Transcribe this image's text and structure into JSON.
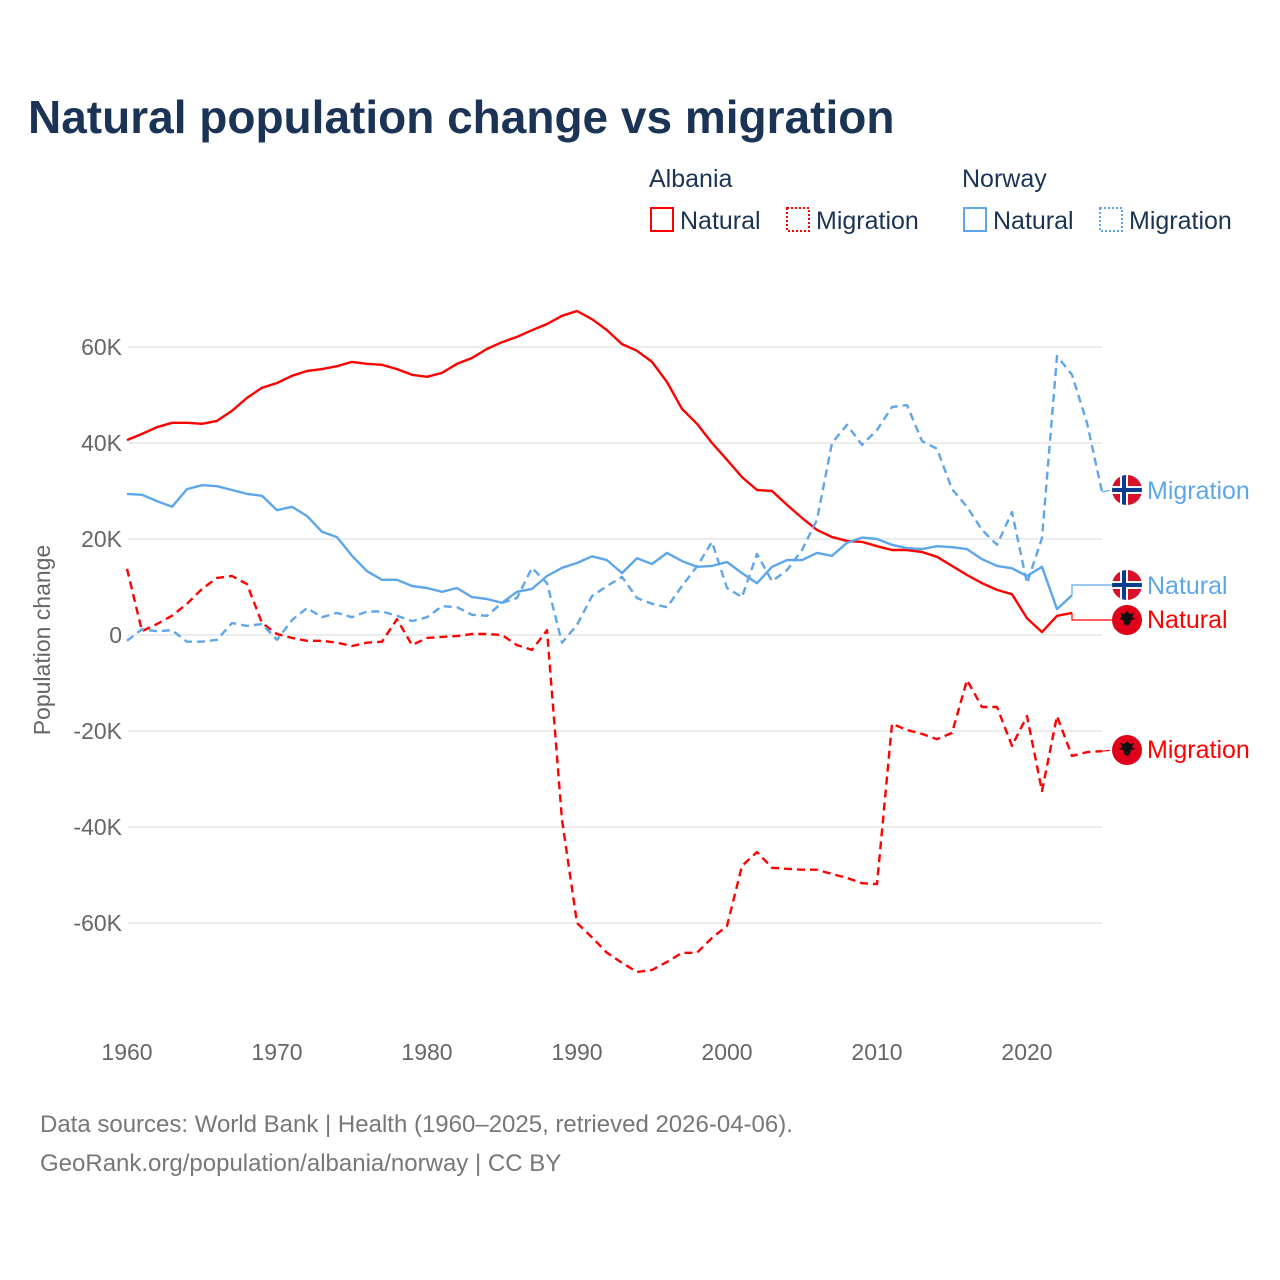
{
  "colors": {
    "albania": "#ff0000",
    "norway": "#5ea6ea",
    "title": "#1b3456"
  },
  "legend": {
    "groups": [
      {
        "country": "Albania",
        "natural": "Natural",
        "migration": "Migration"
      },
      {
        "country": "Norway",
        "natural": "Natural",
        "migration": "Migration"
      }
    ]
  },
  "footer": {
    "line1": "Data sources: World Bank | Health (1960–2025, retrieved 2026-04-06).",
    "line2": "GeoRank.org/population/albania/norway | CC BY"
  },
  "chart_data": {
    "type": "line",
    "title": "Natural population change vs migration",
    "xlabel": "",
    "ylabel": "Population change",
    "xlim": [
      1960,
      2025
    ],
    "ylim": [
      -80000,
      70000
    ],
    "x_ticks": [
      "1960",
      "1970",
      "1980",
      "1990",
      "2000",
      "2010",
      "2020"
    ],
    "y_ticks": [
      {
        "value": 60000,
        "label": "60K"
      },
      {
        "value": 40000,
        "label": "40K"
      },
      {
        "value": 20000,
        "label": "20K"
      },
      {
        "value": 0,
        "label": "0"
      },
      {
        "value": -20000,
        "label": "-20K"
      },
      {
        "value": -40000,
        "label": "-40K"
      },
      {
        "value": -60000,
        "label": "-60K"
      }
    ],
    "grid": true,
    "legend_position": "top-right",
    "series": [
      {
        "name": "Albania Natural",
        "country": "Albania",
        "end_label": "Natural",
        "color": "#ff0000",
        "dash": false,
        "start_year": 1960,
        "values": [
          40.6,
          41.9,
          43.3,
          44.2,
          44.2,
          44.0,
          44.6,
          46.7,
          49.4,
          51.5,
          52.5,
          54.0,
          55.0,
          55.4,
          56.0,
          56.9,
          56.5,
          56.3,
          55.4,
          54.2,
          53.8,
          54.6,
          56.5,
          57.7,
          59.6,
          61.0,
          62.1,
          63.5,
          64.8,
          66.5,
          67.5,
          65.8,
          63.5,
          60.6,
          59.2,
          56.9,
          52.7,
          47.1,
          44.0,
          40.0,
          36.5,
          32.9,
          30.2,
          30.0,
          27.1,
          24.4,
          21.9,
          20.4,
          19.6,
          19.4,
          18.5,
          17.7,
          17.7,
          17.3,
          16.3,
          14.4,
          12.5,
          10.8,
          9.4,
          8.5,
          3.5,
          0.6,
          4.0,
          4.6
        ]
      },
      {
        "name": "Albania Migration",
        "country": "Albania",
        "end_label": "Migration",
        "color": "#ff0000",
        "dash": true,
        "start_year": 1960,
        "values": [
          13.8,
          0.8,
          2.3,
          4.0,
          6.5,
          9.6,
          11.9,
          12.3,
          10.6,
          2.5,
          0.2,
          -0.6,
          -1.2,
          -1.2,
          -1.6,
          -2.3,
          -1.6,
          -1.4,
          3.3,
          -2.1,
          -0.6,
          -0.4,
          -0.2,
          0.2,
          0.2,
          0.0,
          -2.1,
          -3.1,
          1.0,
          -38.5,
          -60.0,
          -63.0,
          -66.2,
          -68.3,
          -70.2,
          -69.8,
          -68.1,
          -66.2,
          -66.2,
          -63.1,
          -60.6,
          -48.1,
          -45.2,
          -48.5,
          -48.7,
          -48.9,
          -48.9,
          -49.8,
          -50.6,
          -51.7,
          -51.9,
          -18.5,
          -19.8,
          -20.6,
          -21.7,
          -20.4,
          -9.4,
          -15.0,
          -15.0,
          -23.1,
          -16.9,
          -32.5,
          -16.9,
          -25.2,
          -24.4,
          -24.2
        ]
      },
      {
        "name": "Norway Natural",
        "country": "Norway",
        "end_label": "Natural",
        "color": "#5ea6ea",
        "dash": false,
        "start_year": 1960,
        "values": [
          29.4,
          29.2,
          27.9,
          26.7,
          30.4,
          31.2,
          31.0,
          30.2,
          29.4,
          29.0,
          26.0,
          26.7,
          24.8,
          21.5,
          20.4,
          16.5,
          13.3,
          11.5,
          11.5,
          10.2,
          9.8,
          9.0,
          9.8,
          7.9,
          7.5,
          6.7,
          9.0,
          9.6,
          12.3,
          14.0,
          15.0,
          16.4,
          15.6,
          12.9,
          16.0,
          14.8,
          17.1,
          15.4,
          14.2,
          14.4,
          15.2,
          12.9,
          10.8,
          14.2,
          15.6,
          15.6,
          17.1,
          16.5,
          19.2,
          20.3,
          20.0,
          18.8,
          18.1,
          17.9,
          18.5,
          18.3,
          17.9,
          15.8,
          14.4,
          13.9,
          12.3,
          14.2,
          5.4,
          8.3
        ]
      },
      {
        "name": "Norway Migration",
        "country": "Norway",
        "end_label": "Migration",
        "color": "#5ea6ea",
        "dash": true,
        "start_year": 1960,
        "values": [
          -1.2,
          1.2,
          0.8,
          1.0,
          -1.4,
          -1.4,
          -1.0,
          2.5,
          1.9,
          2.3,
          -1.0,
          3.1,
          5.6,
          3.7,
          4.6,
          3.7,
          4.9,
          4.9,
          4.0,
          2.9,
          3.7,
          6.0,
          5.8,
          4.2,
          4.0,
          6.7,
          7.7,
          14.0,
          10.8,
          -1.6,
          2.1,
          8.1,
          10.2,
          12.1,
          7.7,
          6.5,
          5.8,
          10.2,
          14.3,
          19.4,
          9.8,
          7.9,
          16.9,
          11.2,
          13.5,
          17.7,
          24.0,
          40.0,
          43.8,
          39.6,
          42.7,
          47.5,
          47.9,
          40.4,
          38.8,
          30.4,
          26.7,
          21.9,
          18.8,
          25.6,
          10.8,
          20.2,
          58.1,
          54.2,
          44.2,
          29.8
        ]
      }
    ],
    "value_unit": "thousands"
  }
}
